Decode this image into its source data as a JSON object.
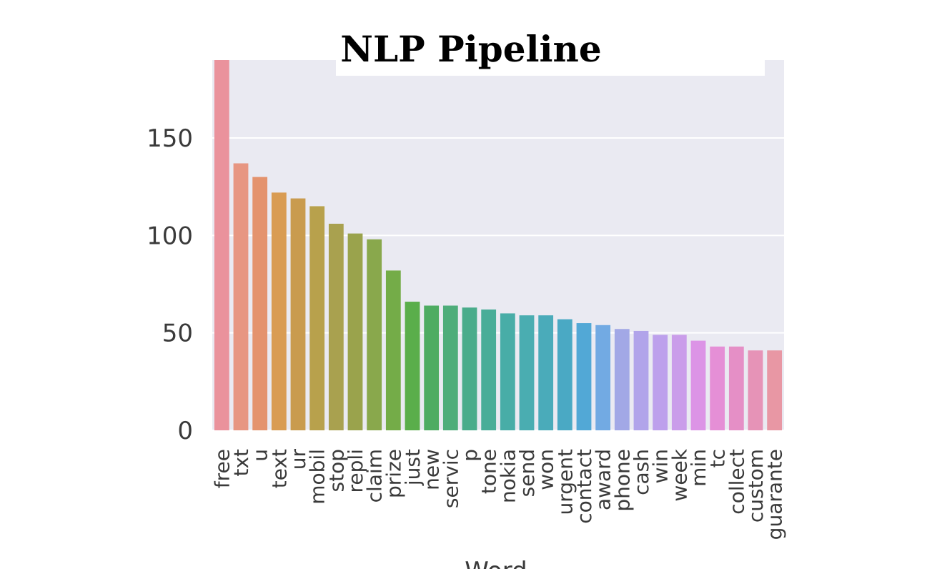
{
  "chart_data": {
    "type": "bar",
    "title": "NLP Pipeline",
    "xlabel": "Word",
    "ylabel": "",
    "ylim": [
      0,
      190
    ],
    "yticks": [
      0,
      50,
      100,
      150
    ],
    "grid": true,
    "categories": [
      "free",
      "txt",
      "u",
      "text",
      "ur",
      "mobil",
      "stop",
      "repli",
      "claim",
      "prize",
      "just",
      "new",
      "servic",
      "p",
      "tone",
      "nokia",
      "send",
      "won",
      "urgent",
      "contact",
      "award",
      "phone",
      "cash",
      "win",
      "week",
      "min",
      "tc",
      "collect",
      "custom",
      "guarante"
    ],
    "values": [
      190,
      137,
      130,
      122,
      119,
      115,
      106,
      101,
      98,
      82,
      66,
      64,
      64,
      63,
      62,
      60,
      59,
      59,
      57,
      55,
      54,
      52,
      51,
      49,
      49,
      46,
      43,
      43,
      41,
      41
    ],
    "colors": [
      "#ea929c",
      "#e79682",
      "#e4936e",
      "#d99c53",
      "#c99b4e",
      "#b8a14c",
      "#a9a14f",
      "#9aa34c",
      "#89a84c",
      "#74ac48",
      "#5aae4b",
      "#4eac62",
      "#4ead7a",
      "#4aac8b",
      "#49ad98",
      "#48ada7",
      "#4aadb1",
      "#4aabba",
      "#4aa9c4",
      "#52a8d6",
      "#72aae3",
      "#a2a8e6",
      "#b1a4ea",
      "#bda0ec",
      "#ca9dea",
      "#dc94e6",
      "#e58fd6",
      "#e58fc6",
      "#e693b7",
      "#e897a4"
    ]
  }
}
